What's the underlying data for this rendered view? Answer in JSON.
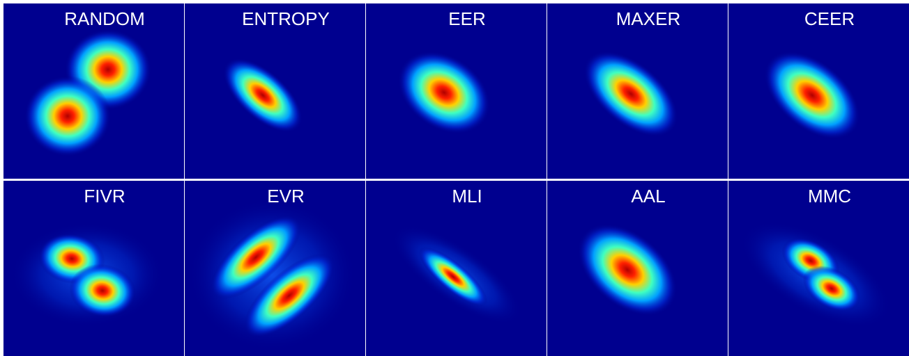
{
  "panels": [
    {
      "label": "RANDOM"
    },
    {
      "label": "ENTROPY"
    },
    {
      "label": "EER"
    },
    {
      "label": "MAXER"
    },
    {
      "label": "CEER"
    },
    {
      "label": "FIVR"
    },
    {
      "label": "EVR"
    },
    {
      "label": "MLI"
    },
    {
      "label": "AAL"
    },
    {
      "label": "MMC"
    }
  ]
}
